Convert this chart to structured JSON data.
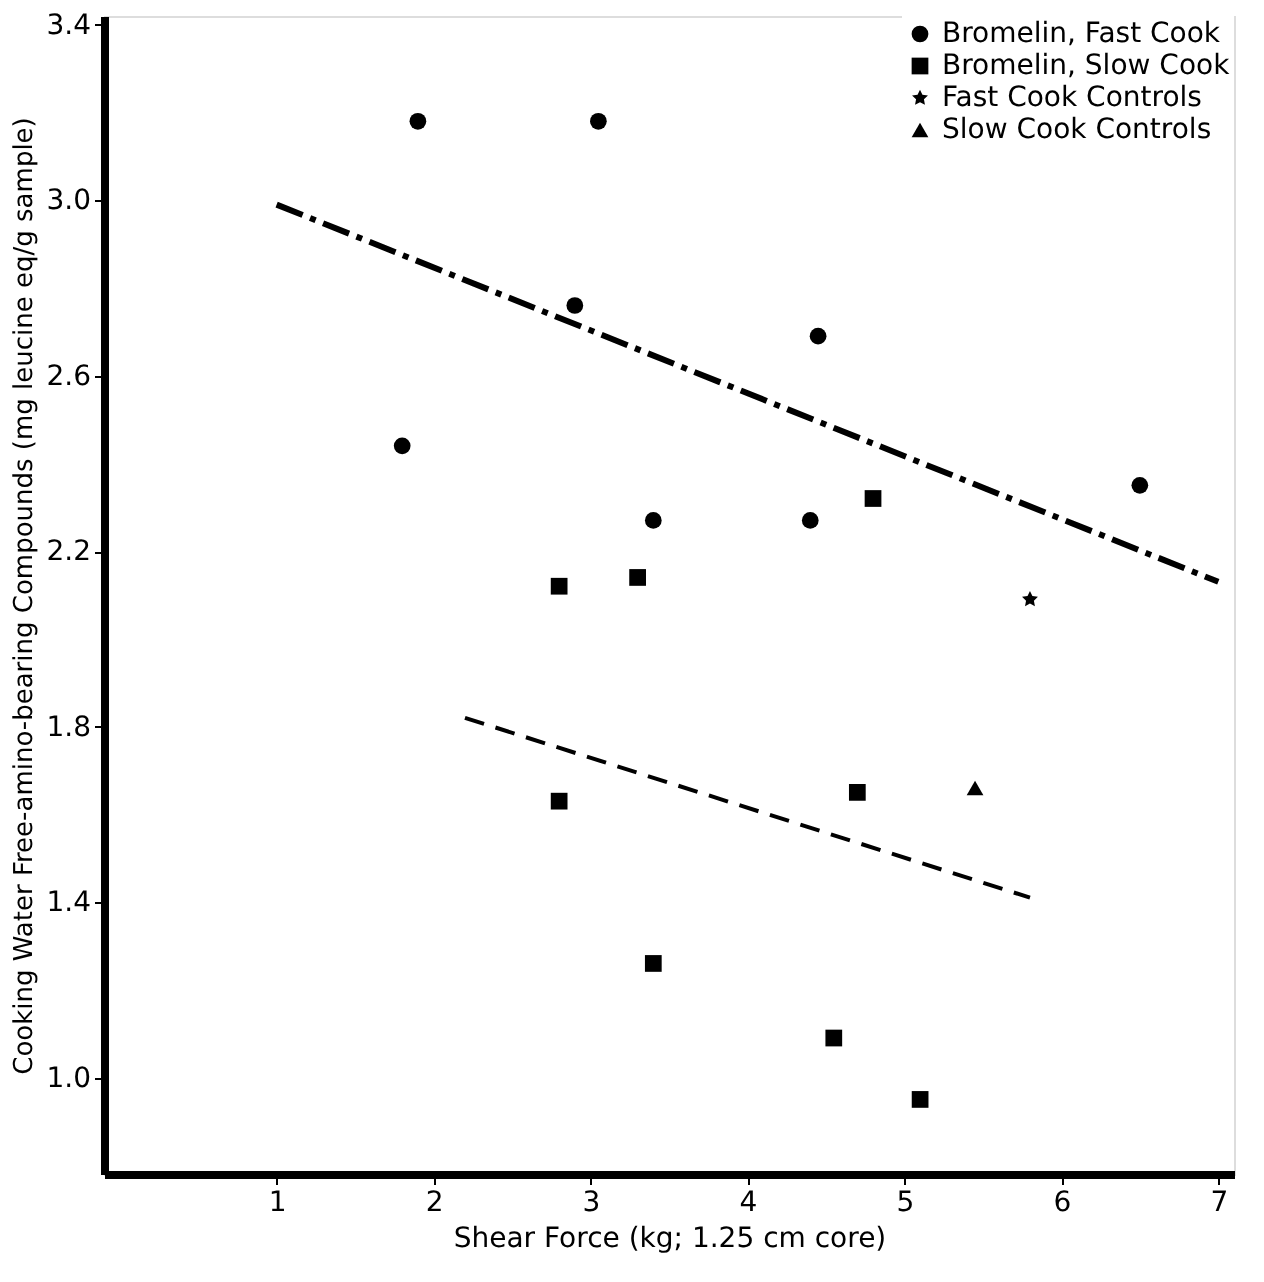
{
  "chart_data": {
    "type": "scatter",
    "xlabel": "Shear Force (kg; 1.25 cm core)",
    "ylabel": "Cooking Water Free-amino-bearing Compounds (mg leucine eq/g sample)",
    "xlim": [
      -0.1,
      7.1
    ],
    "ylim": [
      0.78,
      3.42
    ],
    "xticks": [
      1,
      2,
      3,
      4,
      5,
      6,
      7
    ],
    "yticks": [
      {
        "value": 1.0,
        "label": "1.0"
      },
      1.4,
      1.8,
      2.2,
      2.6,
      {
        "value": 3.0,
        "label": "3.0"
      },
      3.4
    ],
    "legend": "top right",
    "grid": false,
    "series": [
      {
        "name": "Bromelin, Fast Cook",
        "color": "#000000",
        "marker": "circle",
        "x": [
          1.8,
          1.9,
          3.05,
          2.9,
          3.4,
          4.4,
          4.45,
          6.5
        ],
        "values": [
          2.44,
          3.18,
          3.18,
          2.76,
          2.27,
          2.27,
          2.69,
          2.35
        ]
      },
      {
        "name": "Bromelin, Slow Cook",
        "color": "#000000",
        "marker": "square",
        "x": [
          2.8,
          3.3,
          4.8,
          2.8,
          4.7,
          3.4,
          4.55,
          5.1
        ],
        "values": [
          2.12,
          2.14,
          2.32,
          1.63,
          1.65,
          1.26,
          1.09,
          0.95
        ]
      },
      {
        "name": "Fast Cook Controls",
        "color": "#000000",
        "marker": "star",
        "x": [
          5.8
        ],
        "values": [
          2.09
        ]
      },
      {
        "name": "Slow Cook Controls",
        "color": "#000000",
        "marker": "triangle",
        "x": [
          5.45
        ],
        "values": [
          1.66
        ]
      },
      {
        "type": "line",
        "color": "#000000",
        "line_style": "dashdot",
        "x": [
          1,
          7
        ],
        "values": [
          2.99,
          2.13
        ]
      },
      {
        "type": "line",
        "color": "#000000",
        "line_style": "dashed",
        "x": [
          2.2,
          5.8
        ],
        "values": [
          1.82,
          1.41
        ]
      }
    ]
  }
}
